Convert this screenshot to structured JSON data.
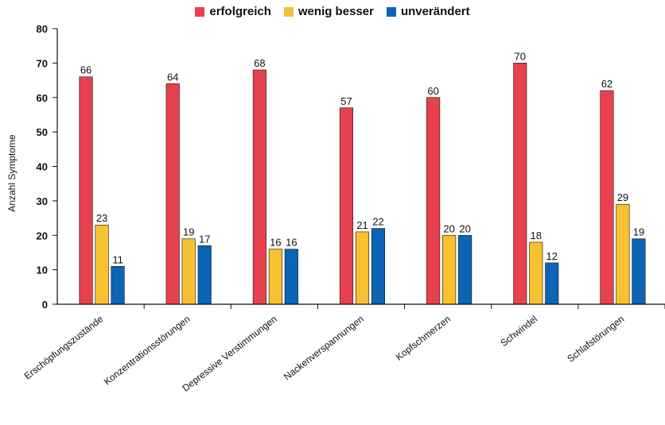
{
  "chart_data": {
    "type": "bar",
    "ylabel": "Anzahl Symptome",
    "ylim": [
      0,
      80
    ],
    "yticks": [
      0,
      10,
      20,
      30,
      40,
      50,
      60,
      70,
      80
    ],
    "categories": [
      "Erschöpfungszustände",
      "Konzentrationsstörungen",
      "Depressive Verstimmungen",
      "Nackenverspannungen",
      "Kopfschmerzen",
      "Schwindel",
      "Schlafstörungen"
    ],
    "series": [
      {
        "name": "erfolgreich",
        "color": "#e8414e",
        "values": [
          66,
          64,
          68,
          57,
          60,
          70,
          62
        ]
      },
      {
        "name": "wenig besser",
        "color": "#f7c12f",
        "values": [
          23,
          19,
          16,
          21,
          20,
          18,
          29
        ]
      },
      {
        "name": "unverändert",
        "color": "#0c64b4",
        "values": [
          11,
          17,
          16,
          22,
          20,
          12,
          19
        ]
      }
    ],
    "legend_position": "top-center",
    "grid": false
  }
}
